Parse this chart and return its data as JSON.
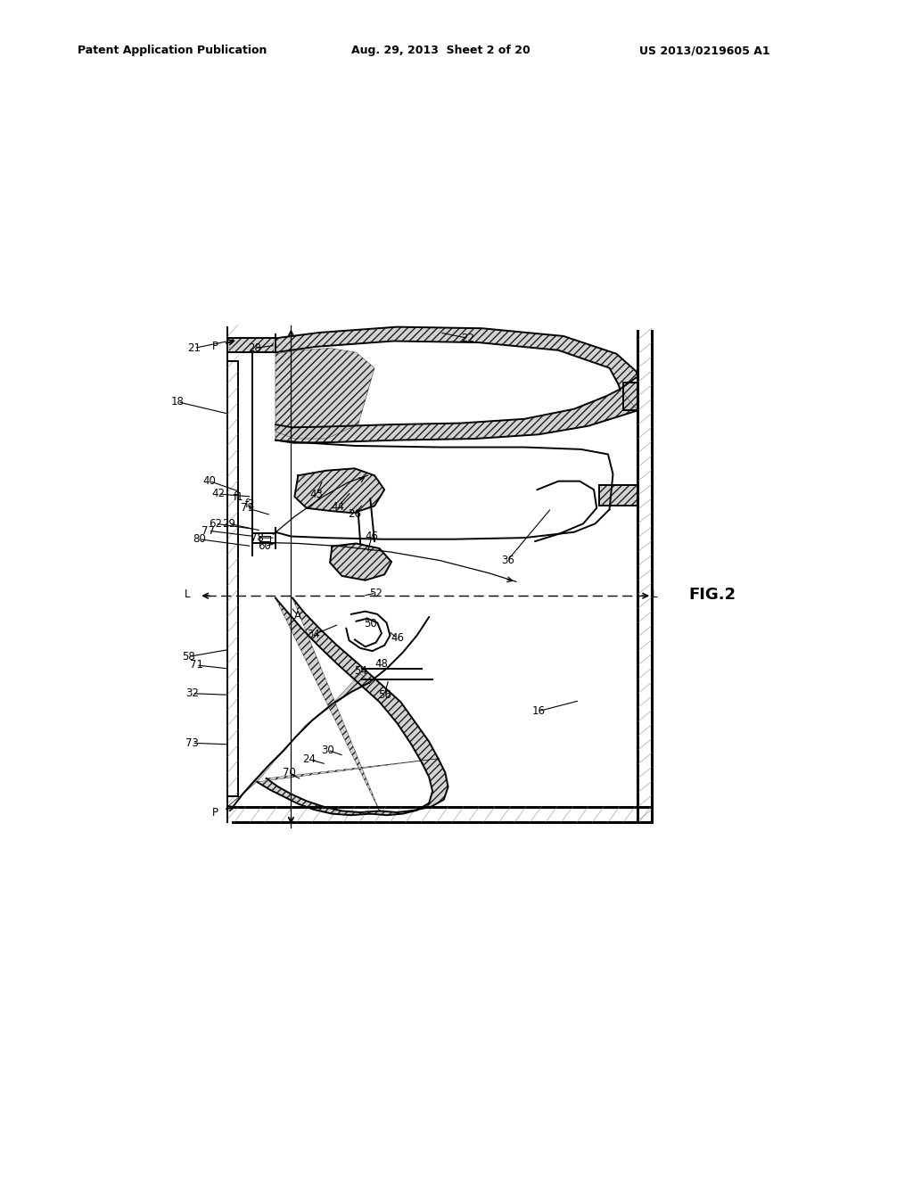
{
  "header_left": "Patent Application Publication",
  "header_mid": "Aug. 29, 2013  Sheet 2 of 20",
  "header_right": "US 2013/0219605 A1",
  "fig_label": "FIG.2",
  "bg": "#ffffff",
  "lc": "#000000"
}
